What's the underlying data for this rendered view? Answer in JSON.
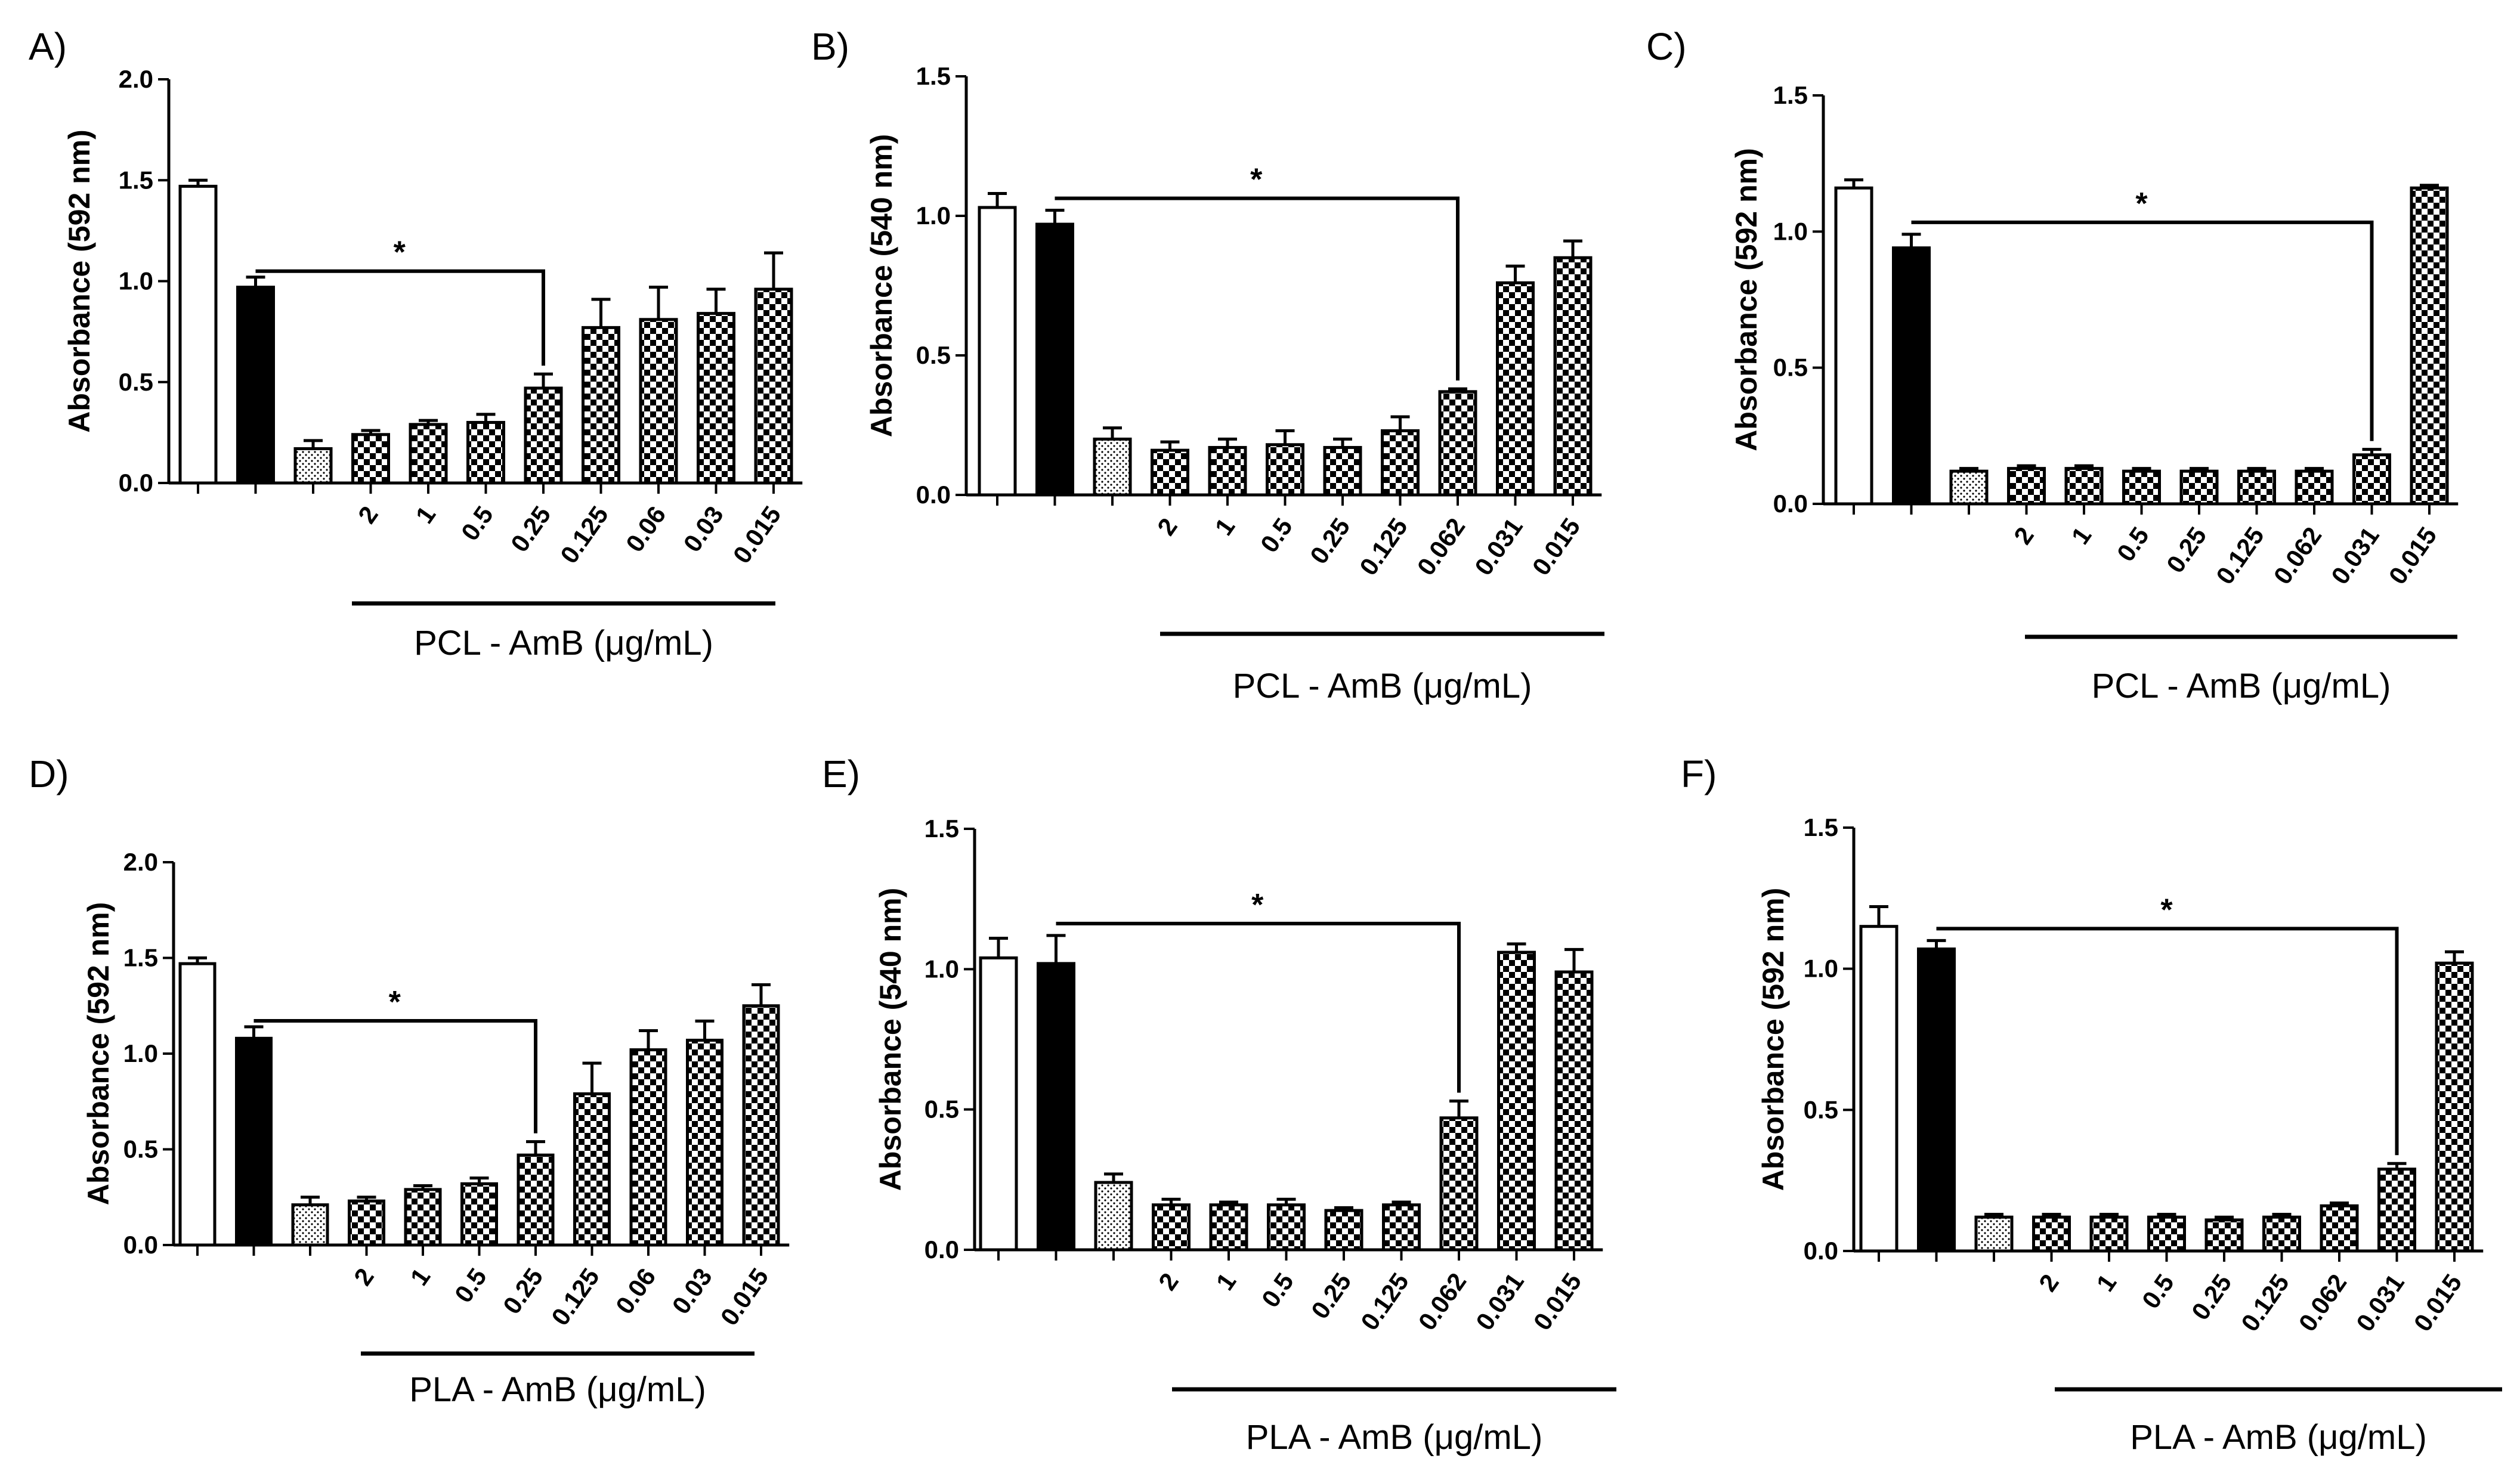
{
  "chart_data": [
    {
      "panel": "A)",
      "type": "bar",
      "ylabel": "Absorbance (592 nm)",
      "ylim": [
        0,
        2.0
      ],
      "yticks": [
        "0.0",
        "0.5",
        "1.0",
        "1.5",
        "2.0"
      ],
      "categories": [
        "",
        "",
        "",
        "2",
        "1",
        "0.5",
        "0.25",
        "0.125",
        "0.06",
        "0.03",
        "0.015"
      ],
      "values": [
        1.47,
        0.97,
        0.17,
        0.24,
        0.29,
        0.3,
        0.47,
        0.77,
        0.81,
        0.84,
        0.96
      ],
      "errors": [
        0.03,
        0.05,
        0.04,
        0.02,
        0.02,
        0.04,
        0.07,
        0.14,
        0.16,
        0.12,
        0.18
      ],
      "fills": [
        "white",
        "black",
        "dots",
        "checker",
        "checker",
        "checker",
        "checker",
        "checker",
        "checker",
        "checker",
        "checker"
      ],
      "group_label": "PCL - AmB (μg/mL)",
      "significance": {
        "from": 1,
        "to": 6,
        "label": "*"
      }
    },
    {
      "panel": "B)",
      "type": "bar",
      "ylabel": "Absorbance (540 nm)",
      "ylim": [
        0,
        1.5
      ],
      "yticks": [
        "0.0",
        "0.5",
        "1.0",
        "1.5"
      ],
      "categories": [
        "",
        "",
        "",
        "2",
        "1",
        "0.5",
        "0.25",
        "0.125",
        "0.062",
        "0.031",
        "0.015"
      ],
      "values": [
        1.03,
        0.97,
        0.2,
        0.16,
        0.17,
        0.18,
        0.17,
        0.23,
        0.37,
        0.76,
        0.85
      ],
      "errors": [
        0.05,
        0.05,
        0.04,
        0.03,
        0.03,
        0.05,
        0.03,
        0.05,
        0.01,
        0.06,
        0.06
      ],
      "fills": [
        "white",
        "black",
        "dots",
        "checker",
        "checker",
        "checker",
        "checker",
        "checker",
        "checker",
        "checker",
        "checker"
      ],
      "group_label": "PCL - AmB (μg/mL)",
      "significance": {
        "from": 1,
        "to": 8,
        "label": "*"
      }
    },
    {
      "panel": "C)",
      "type": "bar",
      "ylabel": "Absorbance (592 nm)",
      "ylim": [
        0,
        1.5
      ],
      "yticks": [
        "0.0",
        "0.5",
        "1.0",
        "1.5"
      ],
      "categories": [
        "",
        "",
        "",
        "2",
        "1",
        "0.5",
        "0.25",
        "0.125",
        "0.062",
        "0.031",
        "0.015"
      ],
      "values": [
        1.16,
        0.94,
        0.12,
        0.13,
        0.13,
        0.12,
        0.12,
        0.12,
        0.12,
        0.18,
        1.16
      ],
      "errors": [
        0.03,
        0.05,
        0.01,
        0.01,
        0.01,
        0.01,
        0.01,
        0.01,
        0.01,
        0.02,
        0.01
      ],
      "fills": [
        "white",
        "black",
        "dots",
        "checker",
        "checker",
        "checker",
        "checker",
        "checker",
        "checker",
        "checker",
        "checker"
      ],
      "group_label": "PCL - AmB (μg/mL)",
      "significance": {
        "from": 1,
        "to": 9,
        "label": "*"
      }
    },
    {
      "panel": "D)",
      "type": "bar",
      "ylabel": "Absorbance (592 nm)",
      "ylim": [
        0,
        2.0
      ],
      "yticks": [
        "0.0",
        "0.5",
        "1.0",
        "1.5",
        "2.0"
      ],
      "categories": [
        "",
        "",
        "",
        "2",
        "1",
        "0.5",
        "0.25",
        "0.125",
        "0.06",
        "0.03",
        "0.015"
      ],
      "values": [
        1.47,
        1.08,
        0.21,
        0.23,
        0.29,
        0.32,
        0.47,
        0.79,
        1.02,
        1.07,
        1.25
      ],
      "errors": [
        0.03,
        0.06,
        0.04,
        0.02,
        0.02,
        0.03,
        0.07,
        0.16,
        0.1,
        0.1,
        0.11
      ],
      "fills": [
        "white",
        "black",
        "dots",
        "checker",
        "checker",
        "checker",
        "checker",
        "checker",
        "checker",
        "checker",
        "checker"
      ],
      "group_label": "PLA - AmB (μg/mL)",
      "significance": {
        "from": 1,
        "to": 6,
        "label": "*"
      }
    },
    {
      "panel": "E)",
      "type": "bar",
      "ylabel": "Absorbance (540 nm)",
      "ylim": [
        0,
        1.5
      ],
      "yticks": [
        "0.0",
        "0.5",
        "1.0",
        "1.5"
      ],
      "categories": [
        "",
        "",
        "",
        "2",
        "1",
        "0.5",
        "0.25",
        "0.125",
        "0.062",
        "0.031",
        "0.015"
      ],
      "values": [
        1.04,
        1.02,
        0.24,
        0.16,
        0.16,
        0.16,
        0.14,
        0.16,
        0.47,
        1.06,
        0.99
      ],
      "errors": [
        0.07,
        0.1,
        0.03,
        0.02,
        0.01,
        0.02,
        0.01,
        0.01,
        0.06,
        0.03,
        0.08
      ],
      "fills": [
        "white",
        "black",
        "dots",
        "checker",
        "checker",
        "checker",
        "checker",
        "checker",
        "checker",
        "checker",
        "checker"
      ],
      "group_label": "PLA - AmB (μg/mL)",
      "significance": {
        "from": 1,
        "to": 8,
        "label": "*"
      }
    },
    {
      "panel": "F)",
      "type": "bar",
      "ylabel": "Absorbance (592 nm)",
      "ylim": [
        0,
        1.5
      ],
      "yticks": [
        "0.0",
        "0.5",
        "1.0",
        "1.5"
      ],
      "categories": [
        "",
        "",
        "",
        "2",
        "1",
        "0.5",
        "0.25",
        "0.125",
        "0.062",
        "0.031",
        "0.015"
      ],
      "values": [
        1.15,
        1.07,
        0.12,
        0.12,
        0.12,
        0.12,
        0.11,
        0.12,
        0.16,
        0.29,
        1.02
      ],
      "errors": [
        0.07,
        0.03,
        0.01,
        0.01,
        0.01,
        0.01,
        0.01,
        0.01,
        0.01,
        0.02,
        0.04
      ],
      "fills": [
        "white",
        "black",
        "dots",
        "checker",
        "checker",
        "checker",
        "checker",
        "checker",
        "checker",
        "checker",
        "checker"
      ],
      "group_label": "PLA - AmB (μg/mL)",
      "significance": {
        "from": 1,
        "to": 9,
        "label": "*"
      }
    }
  ]
}
